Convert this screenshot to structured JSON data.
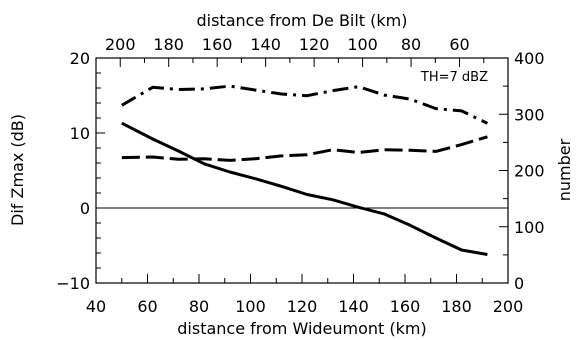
{
  "chart_data": {
    "type": "line",
    "annotation": "TH=7 dBZ",
    "axes": {
      "bottom": {
        "label": "distance from Wideumont (km)",
        "range": [
          40,
          200
        ],
        "ticks": [
          40,
          60,
          80,
          100,
          120,
          140,
          160,
          180,
          200
        ]
      },
      "top": {
        "label": "distance from De Bilt (km)",
        "range": [
          210,
          40
        ],
        "ticks": [
          200,
          180,
          160,
          140,
          120,
          100,
          80,
          60
        ]
      },
      "left": {
        "label": "Dif Zmax (dB)",
        "range": [
          -10,
          20
        ],
        "ticks": [
          -10,
          0,
          10,
          20
        ],
        "zero_line": true
      },
      "right": {
        "label": "number",
        "range": [
          0,
          400
        ],
        "ticks": [
          0,
          100,
          200,
          300,
          400
        ]
      }
    },
    "series": [
      {
        "axis": "left",
        "style": "solid",
        "x": [
          50,
          62,
          72,
          82,
          92,
          102,
          112,
          122,
          132,
          142,
          152,
          162,
          172,
          182,
          192
        ],
        "y": [
          11.3,
          9.2,
          7.6,
          5.9,
          4.8,
          3.9,
          2.9,
          1.8,
          1.1,
          0.1,
          -0.8,
          -2.3,
          -4.0,
          -5.6,
          -6.2
        ]
      },
      {
        "axis": "right",
        "style": "dashed",
        "x": [
          50,
          62,
          72,
          82,
          92,
          102,
          112,
          122,
          132,
          142,
          152,
          162,
          172,
          182,
          192
        ],
        "y": [
          223,
          224,
          220,
          221,
          218,
          221,
          226,
          228,
          237,
          232,
          237,
          236,
          234,
          246,
          260
        ]
      },
      {
        "axis": "right",
        "style": "dashdot",
        "x": [
          50,
          62,
          72,
          82,
          92,
          102,
          112,
          122,
          132,
          142,
          152,
          162,
          172,
          182,
          192
        ],
        "y": [
          316,
          348,
          344,
          345,
          350,
          343,
          336,
          333,
          342,
          349,
          334,
          327,
          310,
          306,
          284
        ]
      }
    ]
  }
}
